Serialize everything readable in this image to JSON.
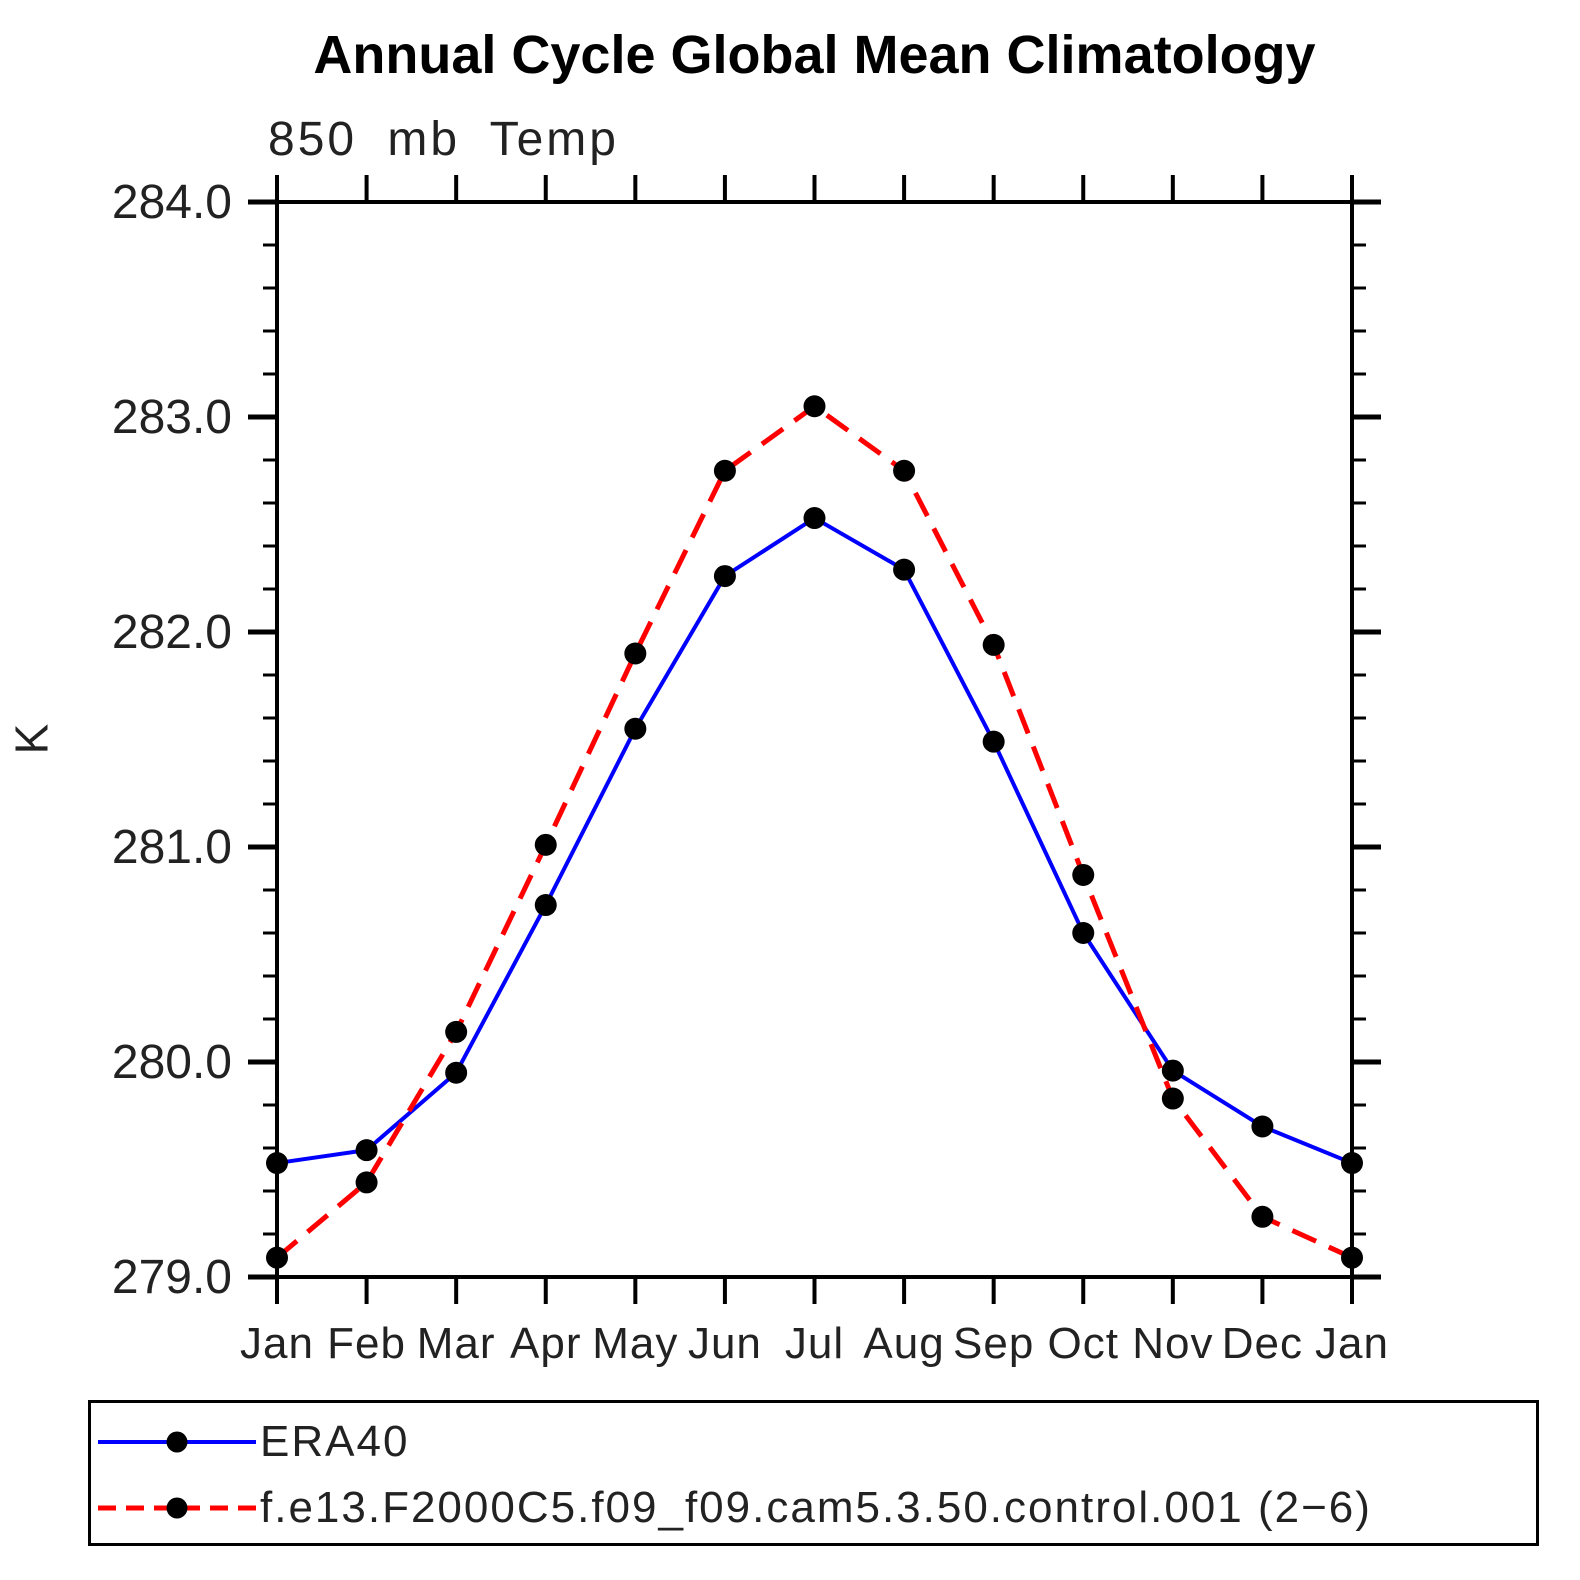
{
  "chart_data": {
    "type": "line",
    "title": "Annual Cycle Global Mean Climatology",
    "subtitle": "850 mb Temp",
    "ylabel": "K",
    "categories": [
      "Jan",
      "Feb",
      "Mar",
      "Apr",
      "May",
      "Jun",
      "Jul",
      "Aug",
      "Sep",
      "Oct",
      "Nov",
      "Dec",
      "Jan"
    ],
    "ylim": [
      279.0,
      284.0
    ],
    "ytick_interval_major": 1.0,
    "ytick_interval_minor": 0.2,
    "ytick_label_format": "one-decimal",
    "grid": "off",
    "legend_position": "bottom-left-box",
    "axis_color": "#000000",
    "marker": "filled-circle",
    "marker_color": "#000000",
    "series": [
      {
        "name": "ERA40",
        "color": "#0000ff",
        "line_style": "solid",
        "values": [
          279.53,
          279.59,
          279.95,
          280.73,
          281.55,
          282.26,
          282.53,
          282.29,
          281.49,
          280.6,
          279.96,
          279.7,
          279.53
        ]
      },
      {
        "name": "f.e13.F2000C5.f09_f09.cam5.3.50.control.001 (2−6)",
        "color": "#ff0000",
        "line_style": "dashed",
        "values": [
          279.09,
          279.44,
          280.14,
          281.01,
          281.9,
          282.75,
          283.05,
          282.75,
          281.94,
          280.87,
          279.83,
          279.28,
          279.09
        ]
      }
    ]
  }
}
